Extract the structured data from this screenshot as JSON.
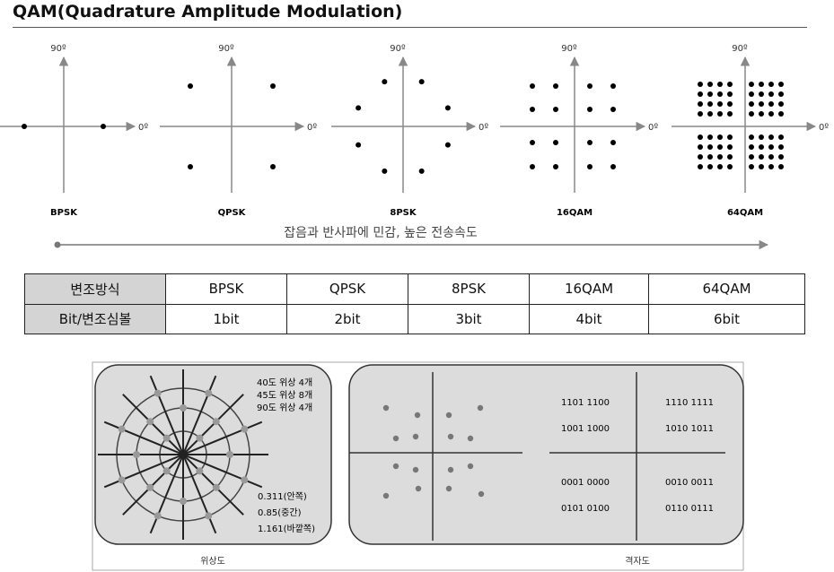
{
  "title": "QAM(Quadrature Amplitude Modulation)",
  "constellations": [
    {
      "label": "BPSK",
      "axis_top": "90º",
      "axis_right": "0º"
    },
    {
      "label": "QPSK",
      "axis_top": "90º",
      "axis_right": "0º"
    },
    {
      "label": "8PSK",
      "axis_top": "90º",
      "axis_right": "0º"
    },
    {
      "label": "16QAM",
      "axis_top": "90º",
      "axis_right": "0º"
    },
    {
      "label": "64QAM",
      "axis_top": "90º",
      "axis_right": "0º"
    }
  ],
  "arrow_caption": "잡음과 반사파에 민감, 높은 전송속도",
  "table": {
    "row1_header": "변조방식",
    "row2_header": "Bit/변조심볼",
    "schemes": [
      "BPSK",
      "QPSK",
      "8PSK",
      "16QAM",
      "64QAM"
    ],
    "bits": [
      "1bit",
      "2bit",
      "3bit",
      "4bit",
      "6bit"
    ]
  },
  "phase_diagram": {
    "legend": [
      "40도 위상 4개",
      "45도 위상 8개",
      "90도 위상 4개"
    ],
    "amplitudes": [
      "0.311(안쪽)",
      "0.85(중간)",
      "1.161(바깥쪽)"
    ],
    "caption": "위상도"
  },
  "grid_diagram": {
    "codes": [
      "1101 1100",
      "1110 1111",
      "1001 1000",
      "1010 1011",
      "0001 0000",
      "0010 0011",
      "0101 0100",
      "0110 0111"
    ],
    "caption": "격자도"
  }
}
